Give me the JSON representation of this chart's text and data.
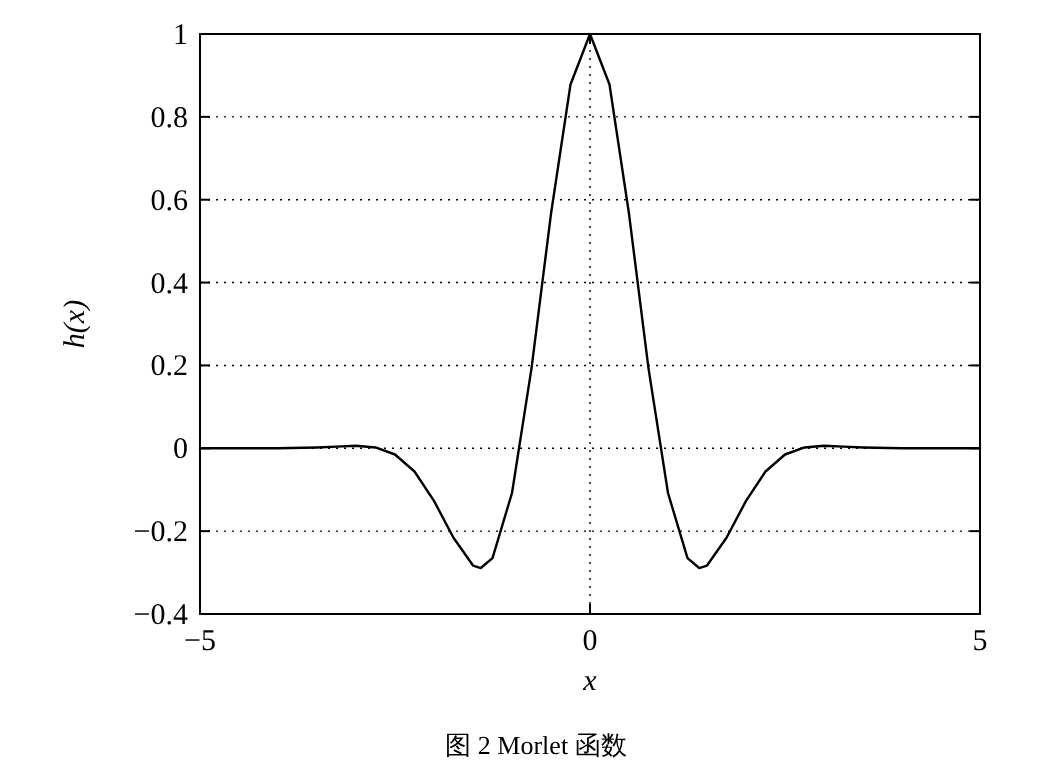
{
  "chart_data": {
    "type": "line",
    "xlabel": "x",
    "ylabel": "h(x)",
    "x": [
      -5,
      -4,
      -3.5,
      -3.25,
      -3,
      -2.75,
      -2.5,
      -2.25,
      -2,
      -1.75,
      -1.5,
      -1.4,
      -1.25,
      -1,
      -0.75,
      -0.5,
      -0.25,
      0,
      0.25,
      0.5,
      0.75,
      1,
      1.25,
      1.4,
      1.5,
      1.75,
      2,
      2.25,
      2.5,
      2.75,
      3,
      3.25,
      3.5,
      4,
      5
    ],
    "series": [
      {
        "color": "#000000",
        "values": [
          0,
          0,
          0.002,
          0.004,
          0.006,
          0.002,
          -0.015,
          -0.056,
          -0.127,
          -0.216,
          -0.283,
          -0.289,
          -0.265,
          -0.108,
          0.193,
          0.566,
          0.878,
          1,
          0.878,
          0.566,
          0.193,
          -0.108,
          -0.265,
          -0.289,
          -0.283,
          -0.216,
          -0.127,
          -0.056,
          -0.015,
          0.002,
          0.006,
          0.004,
          0.002,
          0,
          0
        ]
      }
    ],
    "xlim": [
      -5,
      5
    ],
    "ylim": [
      -0.4,
      1
    ],
    "xticks": [
      -5,
      0,
      5
    ],
    "yticks": [
      -0.4,
      -0.2,
      0,
      0.2,
      0.4,
      0.6,
      0.8,
      1
    ],
    "grid": true,
    "annotations": [
      "图 2  Morlet 函数"
    ]
  }
}
